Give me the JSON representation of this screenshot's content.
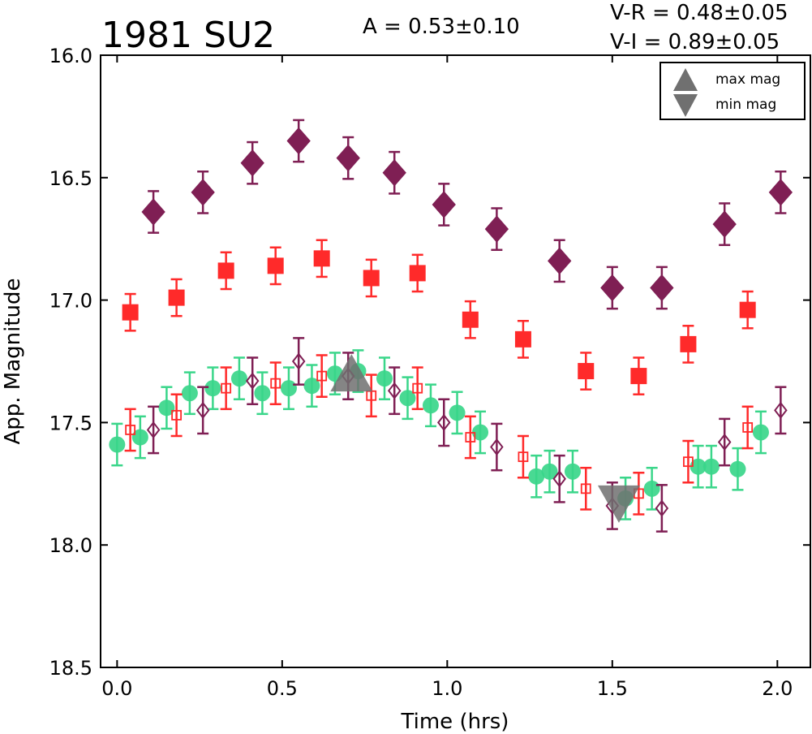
{
  "chart_data": {
    "type": "scatter",
    "title": "1981 SU2",
    "annotations": {
      "amplitude": "A  = 0.53±0.10",
      "v_r": "V-R = 0.48±0.05",
      "v_i": "V-I  = 0.89±0.05"
    },
    "xlabel": "Time (hrs)",
    "ylabel": "App. Magnitude",
    "xlim": [
      -0.05,
      2.1
    ],
    "ylim": [
      16.0,
      18.5
    ],
    "y_inverted": true,
    "grid": false,
    "x_ticks": [
      "0.0",
      "0.5",
      "1.0",
      "1.5",
      "2.0"
    ],
    "y_ticks": [
      "16.0",
      "16.5",
      "17.0",
      "17.5",
      "18.0",
      "18.5"
    ],
    "legend": {
      "placement": "top-right",
      "entries": [
        "max mag",
        "min mag"
      ]
    },
    "series": [
      {
        "marker": "diamond-filled",
        "color": "#7f1f54",
        "x": [
          0.11,
          0.26,
          0.41,
          0.55,
          0.7,
          0.84,
          0.99,
          1.15,
          1.34,
          1.5,
          1.65,
          1.84,
          2.01
        ],
        "y": [
          16.64,
          16.56,
          16.44,
          16.35,
          16.42,
          16.48,
          16.61,
          16.71,
          16.84,
          16.95,
          16.95,
          16.69,
          16.56
        ],
        "err": 0.085
      },
      {
        "marker": "square-filled",
        "color": "#ff2a2a",
        "x": [
          0.04,
          0.18,
          0.33,
          0.48,
          0.62,
          0.77,
          0.91,
          1.07,
          1.23,
          1.42,
          1.58,
          1.73,
          1.91
        ],
        "y": [
          17.05,
          16.99,
          16.88,
          16.86,
          16.83,
          16.91,
          16.89,
          17.08,
          17.16,
          17.29,
          17.31,
          17.18,
          17.04
        ],
        "err": 0.075
      },
      {
        "marker": "circle-filled",
        "color": "#3ad68a",
        "x": [
          0.0,
          0.07,
          0.15,
          0.22,
          0.29,
          0.37,
          0.44,
          0.52,
          0.59,
          0.66,
          0.73,
          0.81,
          0.88,
          0.95,
          1.03,
          1.1,
          1.27,
          1.31,
          1.38,
          1.54,
          1.62,
          1.76,
          1.8,
          1.88,
          1.95
        ],
        "y": [
          17.59,
          17.56,
          17.44,
          17.38,
          17.36,
          17.32,
          17.38,
          17.36,
          17.35,
          17.3,
          17.29,
          17.32,
          17.4,
          17.43,
          17.46,
          17.54,
          17.72,
          17.7,
          17.7,
          17.81,
          17.77,
          17.68,
          17.68,
          17.69,
          17.54
        ],
        "err": 0.085
      },
      {
        "marker": "square-open",
        "color": "#ff2a2a",
        "x": [
          0.04,
          0.18,
          0.33,
          0.48,
          0.62,
          0.77,
          0.91,
          1.07,
          1.23,
          1.42,
          1.58,
          1.73,
          1.91
        ],
        "y": [
          17.53,
          17.47,
          17.36,
          17.34,
          17.31,
          17.39,
          17.36,
          17.56,
          17.64,
          17.77,
          17.79,
          17.66,
          17.52
        ],
        "err": 0.085
      },
      {
        "marker": "diamond-open",
        "color": "#7f1f54",
        "x": [
          0.11,
          0.26,
          0.41,
          0.55,
          0.7,
          0.84,
          0.99,
          1.15,
          1.34,
          1.5,
          1.65,
          1.84,
          2.01
        ],
        "y": [
          17.53,
          17.45,
          17.33,
          17.25,
          17.31,
          17.37,
          17.5,
          17.6,
          17.73,
          17.84,
          17.85,
          17.58,
          17.45
        ],
        "err": 0.095
      }
    ],
    "extrema": [
      {
        "kind": "max",
        "x": 0.71,
        "y": 17.31,
        "color": "#707070"
      },
      {
        "kind": "min",
        "x": 1.52,
        "y": 17.82,
        "color": "#707070"
      }
    ]
  }
}
